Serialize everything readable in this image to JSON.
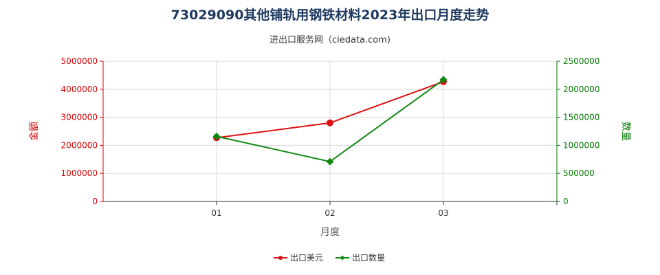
{
  "chart_data": {
    "type": "line",
    "title": "73029090其他铺轨用钢铁材料2023年出口月度走势",
    "subtitle": "进出口服务网（ciedata.com)",
    "xlabel": "月度",
    "ylabel_left": "金额",
    "ylabel_right": "数量",
    "categories": [
      "01",
      "02",
      "03"
    ],
    "x_slots": 4,
    "y_left": {
      "min": 0,
      "max": 5000000,
      "ticks": [
        0,
        1000000,
        2000000,
        3000000,
        4000000,
        5000000
      ],
      "labels": [
        "0",
        "1000000",
        "2000000",
        "3000000",
        "4000000",
        "5000000"
      ]
    },
    "y_right": {
      "min": 0,
      "max": 2500000,
      "ticks": [
        0,
        500000,
        1000000,
        1500000,
        2000000,
        2500000
      ],
      "labels": [
        "0",
        "500000",
        "1000000",
        "1500000",
        "2000000",
        "2500000"
      ]
    },
    "grid": true,
    "legend_position": "bottom",
    "series": [
      {
        "name": "出口美元",
        "axis": "left",
        "color": "#dd1111",
        "marker": "circle",
        "values": [
          2270000,
          2800000,
          4270000
        ]
      },
      {
        "name": "出口数量",
        "axis": "right",
        "color": "#118811",
        "marker": "diamond",
        "values": [
          1160000,
          710000,
          2170000
        ]
      }
    ]
  }
}
